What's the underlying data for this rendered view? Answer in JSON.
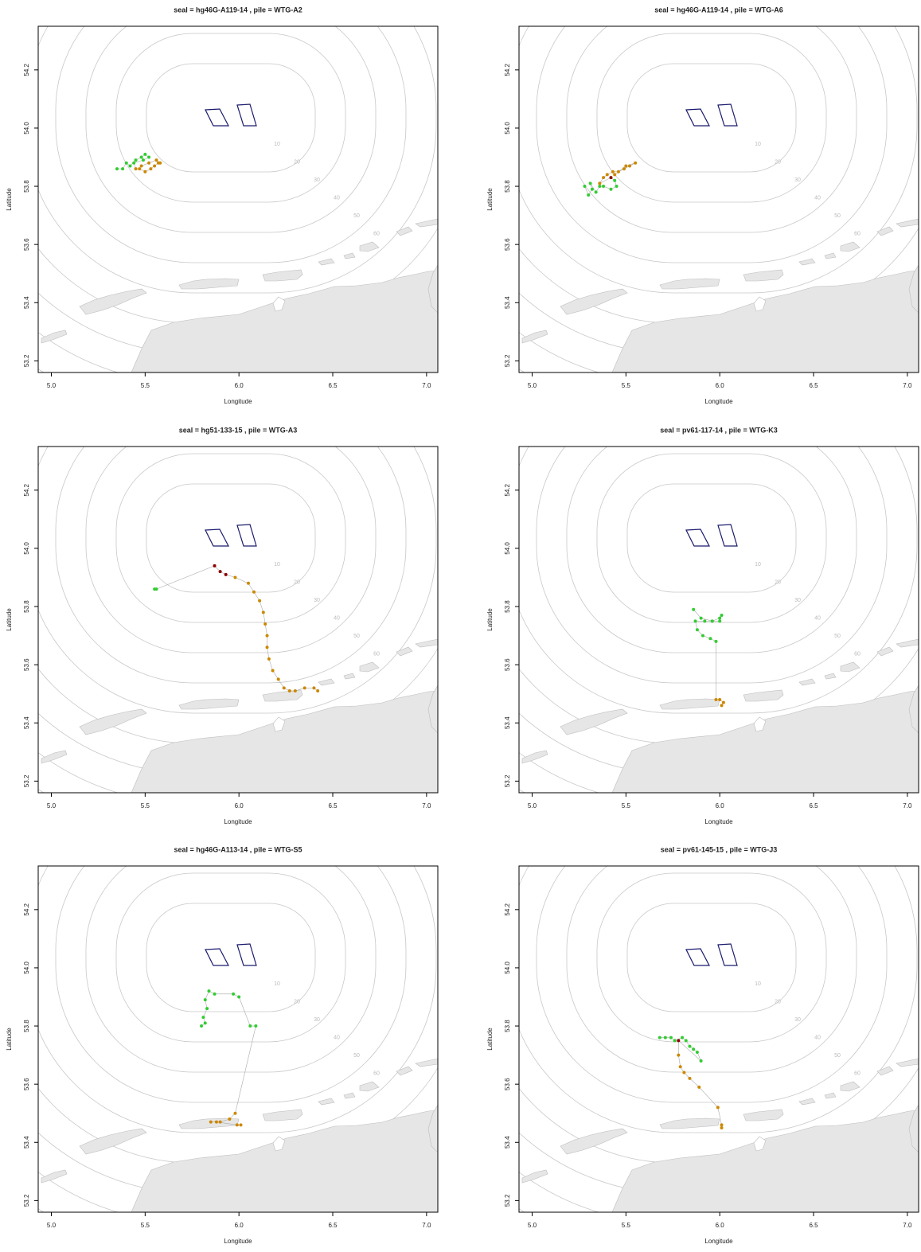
{
  "chart_data": [
    {
      "type": "scatter",
      "title": "seal = hg46G-A119-14 , pile = WTG-A2",
      "x_label": "Longitude",
      "y_label": "Latitude",
      "xlim": [
        4.93,
        7.06
      ],
      "ylim": [
        53.16,
        54.35
      ],
      "xticks": [
        {
          "value": 5,
          "label": "5.0"
        },
        5.5,
        {
          "value": 6,
          "label": "6.0"
        },
        6.5,
        {
          "value": 7,
          "label": "7.0"
        }
      ],
      "yticks": [
        53.2,
        53.4,
        53.6,
        53.8,
        {
          "value": 54,
          "label": "54.0"
        },
        54.2
      ],
      "contour_levels": [
        10,
        20,
        30,
        40,
        50,
        60
      ],
      "series": [
        {
          "color": "#33cc33",
          "x": [
            5.35,
            5.38,
            5.4,
            5.42,
            5.45,
            5.48,
            5.5,
            5.52,
            5.49,
            5.44
          ],
          "y": [
            53.86,
            53.86,
            53.88,
            53.87,
            53.89,
            53.9,
            53.91,
            53.9,
            53.89,
            53.88
          ]
        },
        {
          "color": "#cc8800",
          "x": [
            5.45,
            5.47,
            5.5,
            5.53,
            5.55,
            5.57,
            5.58,
            5.56,
            5.52,
            5.48
          ],
          "y": [
            53.86,
            53.86,
            53.85,
            53.86,
            53.87,
            53.88,
            53.88,
            53.89,
            53.88,
            53.87
          ]
        }
      ]
    },
    {
      "type": "scatter",
      "title": "seal = hg46G-A119-14 , pile = WTG-A6",
      "x_label": "Longitude",
      "y_label": "Latitude",
      "xlim": [
        4.93,
        7.06
      ],
      "ylim": [
        53.16,
        54.35
      ],
      "xticks": [
        {
          "value": 5,
          "label": "5.0"
        },
        5.5,
        {
          "value": 6,
          "label": "6.0"
        },
        6.5,
        {
          "value": 7,
          "label": "7.0"
        }
      ],
      "yticks": [
        53.2,
        53.4,
        53.6,
        53.8,
        {
          "value": 54,
          "label": "54.0"
        },
        54.2
      ],
      "contour_levels": [
        10,
        20,
        30,
        40,
        50,
        60
      ],
      "series": [
        {
          "color": "#33cc33",
          "x": [
            5.28,
            5.3,
            5.32,
            5.31,
            5.34,
            5.36,
            5.38,
            5.42,
            5.45,
            5.44
          ],
          "y": [
            53.8,
            53.77,
            53.79,
            53.81,
            53.78,
            53.8,
            53.8,
            53.79,
            53.8,
            53.82
          ]
        },
        {
          "color": "#8b0000",
          "x": [
            5.42
          ],
          "y": [
            53.83
          ]
        },
        {
          "color": "#cc8800",
          "x": [
            5.36,
            5.38,
            5.4,
            5.43,
            5.46,
            5.49,
            5.52,
            5.55,
            5.5,
            5.44
          ],
          "y": [
            53.81,
            53.83,
            53.84,
            53.85,
            53.85,
            53.86,
            53.87,
            53.88,
            53.87,
            53.84
          ]
        }
      ]
    },
    {
      "type": "scatter",
      "title": "seal = hg51-133-15 , pile = WTG-A3",
      "x_label": "Longitude",
      "y_label": "Latitude",
      "xlim": [
        4.93,
        7.06
      ],
      "ylim": [
        53.16,
        54.35
      ],
      "xticks": [
        {
          "value": 5,
          "label": "5.0"
        },
        5.5,
        {
          "value": 6,
          "label": "6.0"
        },
        6.5,
        {
          "value": 7,
          "label": "7.0"
        }
      ],
      "yticks": [
        53.2,
        53.4,
        53.6,
        53.8,
        {
          "value": 54,
          "label": "54.0"
        },
        54.2
      ],
      "contour_levels": [
        10,
        20,
        30,
        40,
        50,
        60
      ],
      "series": [
        {
          "color": "#33cc33",
          "x": [
            5.55,
            5.56
          ],
          "y": [
            53.86,
            53.86
          ]
        },
        {
          "color": "#8b0000",
          "x": [
            5.87,
            5.9,
            5.93
          ],
          "y": [
            53.94,
            53.92,
            53.91
          ]
        },
        {
          "color": "#cc8800",
          "x": [
            5.98,
            6.05,
            6.08,
            6.11,
            6.13,
            6.14,
            6.15,
            6.15,
            6.16,
            6.18,
            6.21,
            6.24,
            6.27,
            6.3,
            6.35,
            6.4,
            6.42
          ],
          "y": [
            53.9,
            53.88,
            53.85,
            53.82,
            53.78,
            53.74,
            53.7,
            53.66,
            53.62,
            53.58,
            53.55,
            53.52,
            53.51,
            53.51,
            53.52,
            53.52,
            53.51
          ]
        }
      ]
    },
    {
      "type": "scatter",
      "title": "seal = pv61-117-14 , pile = WTG-K3",
      "x_label": "Longitude",
      "y_label": "Latitude",
      "xlim": [
        4.93,
        7.06
      ],
      "ylim": [
        53.16,
        54.35
      ],
      "xticks": [
        {
          "value": 5,
          "label": "5.0"
        },
        5.5,
        {
          "value": 6,
          "label": "6.0"
        },
        6.5,
        {
          "value": 7,
          "label": "7.0"
        }
      ],
      "yticks": [
        53.2,
        53.4,
        53.6,
        53.8,
        {
          "value": 54,
          "label": "54.0"
        },
        54.2
      ],
      "contour_levels": [
        10,
        20,
        30,
        40,
        50,
        60
      ],
      "series": [
        {
          "color": "#33cc33",
          "x": [
            5.86,
            5.9,
            5.96,
            6.0,
            6.01,
            6.0,
            5.96,
            5.92,
            5.87,
            5.88,
            5.91,
            5.95,
            5.98
          ],
          "y": [
            53.79,
            53.76,
            53.75,
            53.75,
            53.77,
            53.76,
            53.75,
            53.75,
            53.75,
            53.72,
            53.7,
            53.69,
            53.68
          ]
        },
        {
          "color": "#cc8800",
          "x": [
            5.98,
            6.0,
            6.02,
            6.01
          ],
          "y": [
            53.48,
            53.48,
            53.47,
            53.46
          ]
        }
      ]
    },
    {
      "type": "scatter",
      "title": "seal = hg46G-A113-14 , pile = WTG-S5",
      "x_label": "Longitude",
      "y_label": "Latitude",
      "xlim": [
        4.93,
        7.06
      ],
      "ylim": [
        53.16,
        54.35
      ],
      "xticks": [
        {
          "value": 5,
          "label": "5.0"
        },
        5.5,
        {
          "value": 6,
          "label": "6.0"
        },
        6.5,
        {
          "value": 7,
          "label": "7.0"
        }
      ],
      "yticks": [
        53.2,
        53.4,
        53.6,
        53.8,
        {
          "value": 54,
          "label": "54.0"
        },
        54.2
      ],
      "contour_levels": [
        10,
        20,
        30,
        40,
        50,
        60
      ],
      "series": [
        {
          "color": "#33cc33",
          "x": [
            5.8,
            5.82,
            5.81,
            5.83,
            5.82,
            5.84,
            5.87,
            5.97,
            6.0,
            6.06,
            6.09
          ],
          "y": [
            53.8,
            53.81,
            53.83,
            53.86,
            53.89,
            53.92,
            53.91,
            53.91,
            53.9,
            53.8,
            53.8
          ]
        },
        {
          "color": "#cc8800",
          "x": [
            5.98,
            5.95,
            5.9,
            5.85,
            5.88,
            5.99,
            6.01
          ],
          "y": [
            53.5,
            53.48,
            53.47,
            53.47,
            53.47,
            53.46,
            53.46
          ]
        }
      ]
    },
    {
      "type": "scatter",
      "title": "seal = pv61-145-15 , pile = WTG-J3",
      "x_label": "Longitude",
      "y_label": "Latitude",
      "xlim": [
        4.93,
        7.06
      ],
      "ylim": [
        53.16,
        54.35
      ],
      "xticks": [
        {
          "value": 5,
          "label": "5.0"
        },
        5.5,
        {
          "value": 6,
          "label": "6.0"
        },
        6.5,
        {
          "value": 7,
          "label": "7.0"
        }
      ],
      "yticks": [
        53.2,
        53.4,
        53.6,
        53.8,
        {
          "value": 54,
          "label": "54.0"
        },
        54.2
      ],
      "contour_levels": [
        10,
        20,
        30,
        40,
        50,
        60
      ],
      "series": [
        {
          "color": "#33cc33",
          "x": [
            5.68,
            5.71,
            5.74,
            5.76,
            5.8,
            5.82,
            5.84,
            5.86,
            5.88,
            5.9
          ],
          "y": [
            53.76,
            53.76,
            53.76,
            53.75,
            53.76,
            53.75,
            53.73,
            53.72,
            53.71,
            53.68
          ]
        },
        {
          "color": "#8b0000",
          "x": [
            5.78
          ],
          "y": [
            53.75
          ]
        },
        {
          "color": "#cc8800",
          "x": [
            5.78,
            5.79,
            5.81,
            5.84,
            5.89,
            5.99,
            6.01,
            6.01
          ],
          "y": [
            53.7,
            53.66,
            53.64,
            53.62,
            53.59,
            53.52,
            53.46,
            53.45
          ]
        }
      ]
    }
  ]
}
